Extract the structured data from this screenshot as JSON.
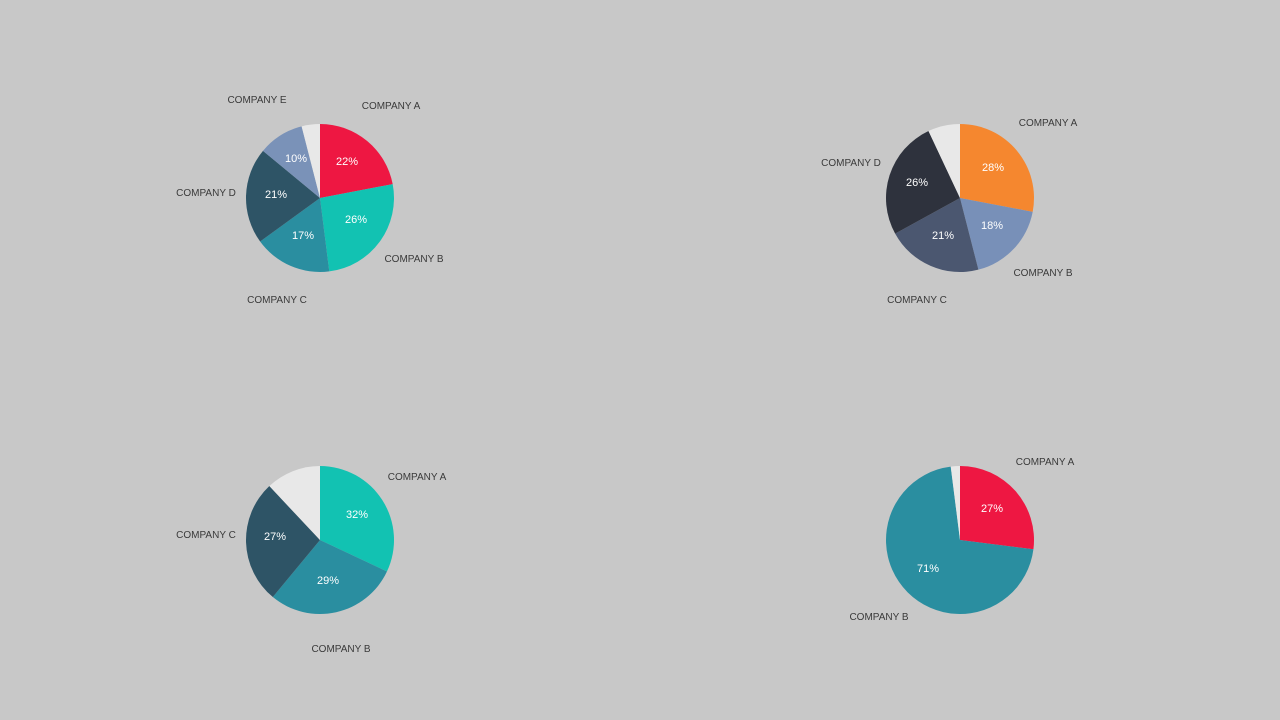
{
  "chart_data": [
    {
      "type": "pie",
      "slices": [
        {
          "label": "COMPANY A",
          "value": 22,
          "value_label": "22%",
          "color": "#ee1742"
        },
        {
          "label": "COMPANY B",
          "value": 26,
          "value_label": "26%",
          "color": "#12c2b2"
        },
        {
          "label": "COMPANY C",
          "value": 17,
          "value_label": "17%",
          "color": "#2a8ea0"
        },
        {
          "label": "COMPANY D",
          "value": 21,
          "value_label": "21%",
          "color": "#2e5466"
        },
        {
          "label": "COMPANY E",
          "value": 10,
          "value_label": "10%",
          "color": "#7a92b8"
        },
        {
          "label": "",
          "value": 4,
          "value_label": "",
          "color": "#e8e8e8"
        }
      ]
    },
    {
      "type": "pie",
      "slices": [
        {
          "label": "COMPANY A",
          "value": 28,
          "value_label": "28%",
          "color": "#f5872f"
        },
        {
          "label": "COMPANY B",
          "value": 18,
          "value_label": "18%",
          "color": "#7890b8"
        },
        {
          "label": "COMPANY C",
          "value": 21,
          "value_label": "21%",
          "color": "#4b5770"
        },
        {
          "label": "COMPANY D",
          "value": 26,
          "value_label": "26%",
          "color": "#2e323d"
        },
        {
          "label": "",
          "value": 7,
          "value_label": "",
          "color": "#e8e8e8"
        }
      ]
    },
    {
      "type": "pie",
      "slices": [
        {
          "label": "COMPANY A",
          "value": 32,
          "value_label": "32%",
          "color": "#12c2b2"
        },
        {
          "label": "COMPANY B",
          "value": 29,
          "value_label": "29%",
          "color": "#2a8ea0"
        },
        {
          "label": "COMPANY C",
          "value": 27,
          "value_label": "27%",
          "color": "#2e5466"
        },
        {
          "label": "",
          "value": 12,
          "value_label": "",
          "color": "#e8e8e8"
        }
      ]
    },
    {
      "type": "pie",
      "slices": [
        {
          "label": "COMPANY A",
          "value": 27,
          "value_label": "27%",
          "color": "#ee1742"
        },
        {
          "label": "COMPANY B",
          "value": 71,
          "value_label": "71%",
          "color": "#2a8ea0"
        },
        {
          "label": "",
          "value": 2,
          "value_label": "",
          "color": "#e8e8e8"
        }
      ]
    }
  ]
}
